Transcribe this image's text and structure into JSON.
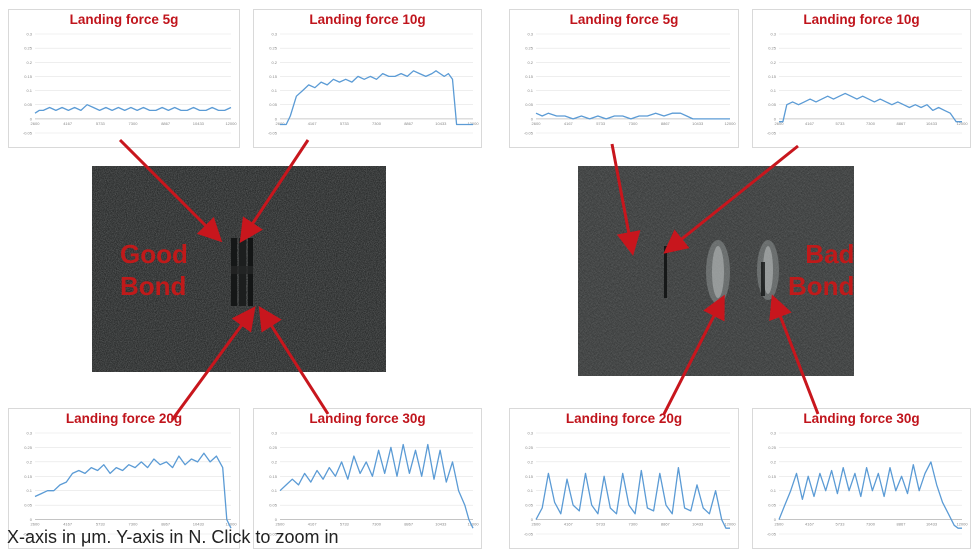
{
  "caption": "X-axis in μm. Y-axis in N. Click to zoom in",
  "photos": {
    "left_label": "Good\nBond",
    "right_label": "Bad\nBond"
  },
  "colors": {
    "line": "#5b9bd5",
    "title": "#c0141c",
    "arrow": "#c8161d"
  },
  "chart_data": [
    {
      "type": "line",
      "id": "good-5g",
      "title": "Landing force 5g",
      "xlim": [
        2600,
        12000
      ],
      "ylim": [
        -0.05,
        0.3
      ],
      "x": [
        2600,
        2800,
        3000,
        3300,
        3600,
        3900,
        4200,
        4500,
        4800,
        5100,
        5400,
        5700,
        6000,
        6300,
        6600,
        6900,
        7200,
        7500,
        7800,
        8100,
        8400,
        8700,
        9000,
        9300,
        9600,
        9900,
        10200,
        10500,
        10800,
        11100,
        11400,
        11700,
        12000
      ],
      "y": [
        0.02,
        0.03,
        0.03,
        0.04,
        0.03,
        0.04,
        0.03,
        0.04,
        0.03,
        0.05,
        0.04,
        0.03,
        0.04,
        0.03,
        0.04,
        0.03,
        0.04,
        0.03,
        0.04,
        0.03,
        0.03,
        0.04,
        0.03,
        0.04,
        0.03,
        0.03,
        0.04,
        0.03,
        0.03,
        0.04,
        0.03,
        0.03,
        0.04
      ]
    },
    {
      "type": "line",
      "id": "good-10g",
      "title": "Landing force 10g",
      "xlim": [
        2600,
        12000
      ],
      "ylim": [
        -0.05,
        0.3
      ],
      "x": [
        2600,
        2900,
        3100,
        3400,
        3700,
        4000,
        4300,
        4600,
        4900,
        5200,
        5500,
        5800,
        6100,
        6400,
        6700,
        7000,
        7300,
        7600,
        7900,
        8200,
        8500,
        8800,
        9100,
        9400,
        9700,
        10000,
        10200,
        10400,
        10600,
        10800,
        11000,
        11200,
        11400,
        11700,
        12000
      ],
      "y": [
        -0.02,
        -0.02,
        0.01,
        0.08,
        0.1,
        0.12,
        0.11,
        0.13,
        0.12,
        0.14,
        0.13,
        0.14,
        0.13,
        0.15,
        0.14,
        0.15,
        0.14,
        0.16,
        0.15,
        0.15,
        0.16,
        0.15,
        0.17,
        0.16,
        0.15,
        0.16,
        0.17,
        0.16,
        0.15,
        0.16,
        0.14,
        -0.02,
        -0.02,
        -0.02,
        -0.02
      ]
    },
    {
      "type": "line",
      "id": "bad-5g",
      "title": "Landing force 5g",
      "xlim": [
        2600,
        12000
      ],
      "ylim": [
        -0.05,
        0.3
      ],
      "x": [
        2600,
        2900,
        3200,
        3600,
        4000,
        4400,
        4800,
        5200,
        5600,
        6000,
        6400,
        6800,
        7200,
        7600,
        8000,
        8400,
        8800,
        9200,
        9600,
        9900,
        10200,
        10600,
        11000,
        11400,
        12000
      ],
      "y": [
        0.02,
        0.01,
        0.02,
        0.01,
        0.01,
        0.0,
        0.01,
        0.0,
        0.01,
        0.0,
        0.01,
        0.01,
        0.0,
        0.01,
        0.01,
        0.02,
        0.01,
        0.02,
        0.02,
        0.01,
        0.0,
        0.0,
        0.0,
        0.0,
        0.0
      ]
    },
    {
      "type": "line",
      "id": "bad-10g",
      "title": "Landing force 10g",
      "xlim": [
        2600,
        12000
      ],
      "ylim": [
        -0.05,
        0.3
      ],
      "x": [
        2600,
        2800,
        3000,
        3300,
        3600,
        3900,
        4200,
        4500,
        4800,
        5100,
        5400,
        5700,
        6000,
        6300,
        6600,
        6900,
        7200,
        7500,
        7800,
        8100,
        8400,
        8700,
        9000,
        9300,
        9600,
        9900,
        10200,
        10500,
        10800,
        11100,
        11400,
        11700,
        12000
      ],
      "y": [
        -0.01,
        -0.01,
        0.05,
        0.06,
        0.05,
        0.06,
        0.07,
        0.06,
        0.07,
        0.08,
        0.07,
        0.08,
        0.09,
        0.08,
        0.07,
        0.08,
        0.07,
        0.06,
        0.07,
        0.06,
        0.05,
        0.06,
        0.05,
        0.04,
        0.05,
        0.04,
        0.05,
        0.03,
        0.04,
        0.03,
        0.02,
        -0.01,
        -0.01
      ]
    },
    {
      "type": "line",
      "id": "good-20g",
      "title": "Landing force 20g",
      "xlim": [
        2600,
        12000
      ],
      "ylim": [
        -0.05,
        0.3
      ],
      "x": [
        2600,
        2900,
        3200,
        3500,
        3800,
        4100,
        4400,
        4700,
        5000,
        5300,
        5600,
        5900,
        6200,
        6500,
        6800,
        7100,
        7400,
        7700,
        8000,
        8300,
        8600,
        8900,
        9200,
        9500,
        9800,
        10100,
        10400,
        10700,
        11000,
        11300,
        11600,
        11800,
        12000
      ],
      "y": [
        0.08,
        0.09,
        0.1,
        0.1,
        0.12,
        0.13,
        0.16,
        0.17,
        0.16,
        0.18,
        0.17,
        0.19,
        0.16,
        0.18,
        0.17,
        0.19,
        0.18,
        0.2,
        0.18,
        0.21,
        0.19,
        0.2,
        0.18,
        0.22,
        0.19,
        0.21,
        0.2,
        0.23,
        0.2,
        0.22,
        0.18,
        0.0,
        -0.03
      ]
    },
    {
      "type": "line",
      "id": "good-30g",
      "title": "Landing force 30g",
      "xlim": [
        2600,
        12000
      ],
      "ylim": [
        -0.05,
        0.3
      ],
      "x": [
        2600,
        2900,
        3200,
        3500,
        3800,
        4100,
        4400,
        4700,
        5000,
        5300,
        5600,
        5900,
        6200,
        6500,
        6800,
        7100,
        7400,
        7700,
        8000,
        8300,
        8600,
        8900,
        9200,
        9500,
        9800,
        10100,
        10400,
        10700,
        11000,
        11300,
        11600,
        11800,
        12000
      ],
      "y": [
        0.1,
        0.12,
        0.14,
        0.12,
        0.16,
        0.13,
        0.17,
        0.14,
        0.18,
        0.15,
        0.2,
        0.14,
        0.22,
        0.16,
        0.2,
        0.15,
        0.24,
        0.16,
        0.25,
        0.15,
        0.26,
        0.16,
        0.24,
        0.15,
        0.26,
        0.14,
        0.24,
        0.13,
        0.2,
        0.1,
        0.05,
        0.0,
        -0.03
      ]
    },
    {
      "type": "line",
      "id": "bad-20g",
      "title": "Landing force 20g",
      "xlim": [
        2600,
        12000
      ],
      "ylim": [
        -0.05,
        0.3
      ],
      "x": [
        2600,
        2900,
        3200,
        3500,
        3800,
        4100,
        4400,
        4700,
        5000,
        5300,
        5600,
        5900,
        6200,
        6500,
        6800,
        7100,
        7400,
        7700,
        8000,
        8300,
        8600,
        8900,
        9200,
        9500,
        9800,
        10100,
        10400,
        10700,
        11000,
        11300,
        11600,
        11800,
        12000
      ],
      "y": [
        0.0,
        0.04,
        0.16,
        0.06,
        0.02,
        0.14,
        0.05,
        0.03,
        0.16,
        0.05,
        0.02,
        0.15,
        0.04,
        0.02,
        0.16,
        0.05,
        0.02,
        0.17,
        0.04,
        0.03,
        0.16,
        0.05,
        0.02,
        0.18,
        0.04,
        0.03,
        0.12,
        0.04,
        0.02,
        0.1,
        0.0,
        -0.03,
        -0.03
      ]
    },
    {
      "type": "line",
      "id": "bad-30g",
      "title": "Landing force 30g",
      "xlim": [
        2600,
        12000
      ],
      "ylim": [
        -0.05,
        0.3
      ],
      "x": [
        2600,
        2900,
        3200,
        3500,
        3800,
        4100,
        4400,
        4700,
        5000,
        5300,
        5600,
        5900,
        6200,
        6500,
        6800,
        7100,
        7400,
        7700,
        8000,
        8300,
        8600,
        8900,
        9200,
        9500,
        9800,
        10100,
        10400,
        10700,
        11000,
        11300,
        11600,
        11800,
        12000
      ],
      "y": [
        0.0,
        0.05,
        0.1,
        0.16,
        0.07,
        0.15,
        0.08,
        0.16,
        0.1,
        0.17,
        0.09,
        0.18,
        0.1,
        0.16,
        0.08,
        0.18,
        0.1,
        0.16,
        0.08,
        0.18,
        0.1,
        0.15,
        0.09,
        0.19,
        0.1,
        0.16,
        0.2,
        0.12,
        0.06,
        0.02,
        -0.02,
        -0.03,
        -0.03
      ]
    }
  ]
}
